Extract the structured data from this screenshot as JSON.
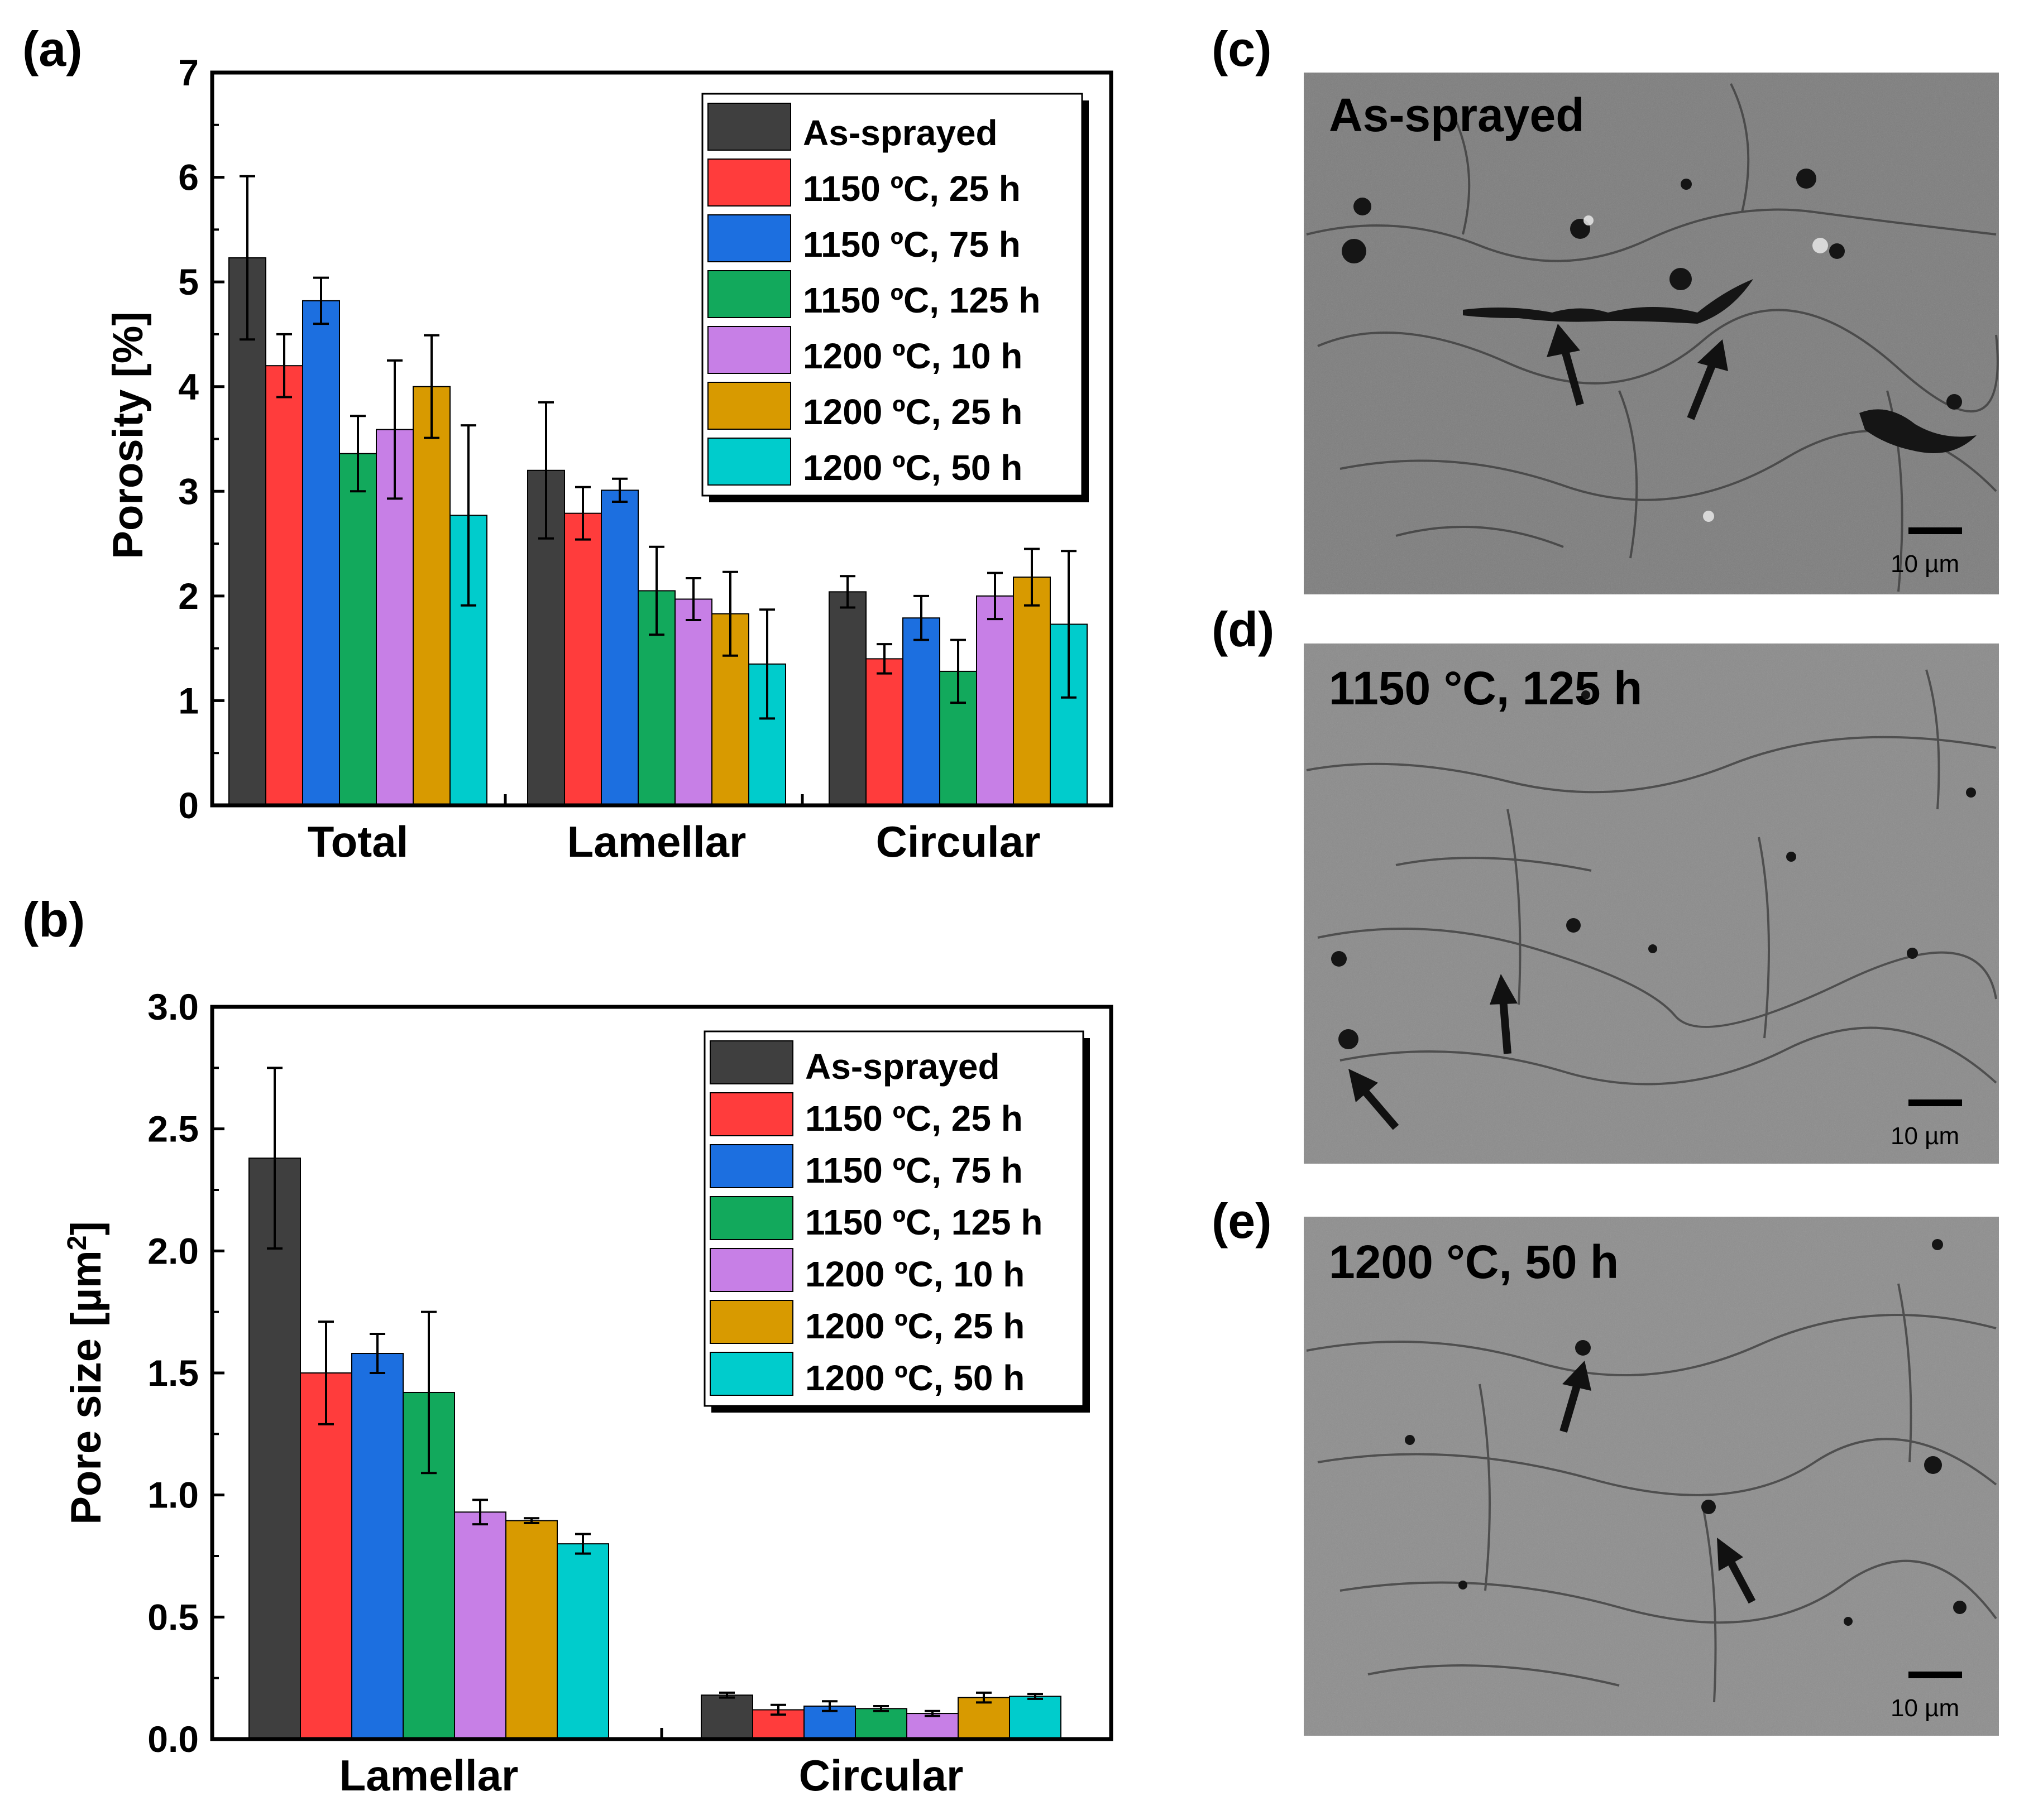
{
  "panels": {
    "a": {
      "label": "(a)"
    },
    "b": {
      "label": "(b)"
    },
    "c": {
      "label": "(c)"
    },
    "d": {
      "label": "(d)"
    },
    "e": {
      "label": "(e)"
    }
  },
  "colors": {
    "As-sprayed": "#3f3f3f",
    "1150 ºC, 25 h": "#ff3c3c",
    "1150 ºC, 75 h": "#1c6fe0",
    "1150 ºC, 125 h": "#12a95c",
    "1200 ºC, 10 h": "#c77fe6",
    "1200 ºC, 25 h": "#d89a00",
    "1200 ºC, 50 h": "#00cccc"
  },
  "chart_data": [
    {
      "panel": "(a)",
      "type": "bar",
      "ylabel": "Porosity [%]",
      "xlabel": "",
      "ylim": [
        0,
        7
      ],
      "yticks": [
        "0",
        "1",
        "2",
        "3",
        "4",
        "5",
        "6",
        "7"
      ],
      "legend_position": "top-right",
      "categories": [
        "Total",
        "Lamellar",
        "Circular"
      ],
      "series": [
        {
          "name": "As-sprayed",
          "values": [
            5.23,
            3.2,
            2.04
          ],
          "errors": [
            0.78,
            0.65,
            0.15
          ]
        },
        {
          "name": "1150 ºC, 25 h",
          "values": [
            4.2,
            2.79,
            1.4
          ],
          "errors": [
            0.3,
            0.25,
            0.14
          ]
        },
        {
          "name": "1150 ºC, 75 h",
          "values": [
            4.82,
            3.01,
            1.79
          ],
          "errors": [
            0.22,
            0.11,
            0.21
          ]
        },
        {
          "name": "1150 ºC, 125 h",
          "values": [
            3.36,
            2.05,
            1.28
          ],
          "errors": [
            0.36,
            0.42,
            0.3
          ]
        },
        {
          "name": "1200 ºC, 10 h",
          "values": [
            3.59,
            1.97,
            2.0
          ],
          "errors": [
            0.66,
            0.2,
            0.22
          ]
        },
        {
          "name": "1200 ºC, 25 h",
          "values": [
            4.0,
            1.83,
            2.18
          ],
          "errors": [
            0.49,
            0.4,
            0.27
          ]
        },
        {
          "name": "1200 ºC, 50 h",
          "values": [
            2.77,
            1.35,
            1.73
          ],
          "errors": [
            0.86,
            0.52,
            0.7
          ]
        }
      ]
    },
    {
      "panel": "(b)",
      "type": "bar",
      "ylabel": "Pore size [µm²]",
      "xlabel": "",
      "ylim": [
        0,
        3.0
      ],
      "yticks": [
        "0.0",
        "0.5",
        "1.0",
        "1.5",
        "2.0",
        "2.5",
        "3.0"
      ],
      "legend_position": "top-right",
      "categories": [
        "Lamellar",
        "Circular"
      ],
      "series": [
        {
          "name": "As-sprayed",
          "values": [
            2.38,
            0.18
          ],
          "errors": [
            0.37,
            0.01
          ]
        },
        {
          "name": "1150 ºC, 25 h",
          "values": [
            1.5,
            0.12
          ],
          "errors": [
            0.21,
            0.02
          ]
        },
        {
          "name": "1150 ºC, 75 h",
          "values": [
            1.58,
            0.135
          ],
          "errors": [
            0.08,
            0.02
          ]
        },
        {
          "name": "1150 ºC, 125 h",
          "values": [
            1.42,
            0.125
          ],
          "errors": [
            0.33,
            0.01
          ]
        },
        {
          "name": "1200 ºC, 10 h",
          "values": [
            0.93,
            0.105
          ],
          "errors": [
            0.05,
            0.01
          ]
        },
        {
          "name": "1200 ºC, 25 h",
          "values": [
            0.895,
            0.17
          ],
          "errors": [
            0.01,
            0.02
          ]
        },
        {
          "name": "1200 ºC, 50 h",
          "values": [
            0.8,
            0.175
          ],
          "errors": [
            0.04,
            0.01
          ]
        }
      ]
    }
  ],
  "micrographs": [
    {
      "panel": "(c)",
      "title": "As-sprayed",
      "scale": "10 µm"
    },
    {
      "panel": "(d)",
      "title": "1150 °C, 125 h",
      "scale": "10 µm"
    },
    {
      "panel": "(e)",
      "title": "1200 °C, 50 h",
      "scale": "10 µm"
    }
  ]
}
